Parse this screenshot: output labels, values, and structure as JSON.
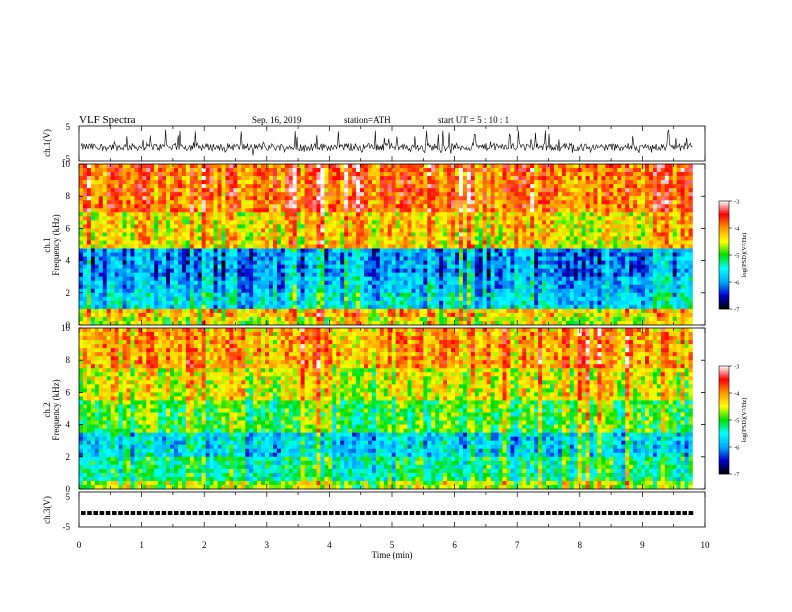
{
  "header": {
    "title": "VLF  Spectra",
    "date": "Sep. 16, 2019",
    "station": "station=ATH",
    "start": "start  UT  =   5  : 10 : 1"
  },
  "chart_data": [
    {
      "type": "line",
      "title": "",
      "ylabel": "ch.1(V)",
      "ylim": [
        -5,
        5
      ],
      "yticks": [
        "5",
        "-5"
      ],
      "xlim": [
        0,
        10
      ],
      "note_series": "continuous noisy waveform centred near -1 V, mostly between -2.5 and 0 V with frequent spikes up to about +4 V"
    },
    {
      "type": "heatmap",
      "ylabel": "ch.1\nFrequency (kHz)",
      "ylim": [
        0,
        10
      ],
      "yticks": [
        "0",
        "2",
        "4",
        "6",
        "8",
        "10"
      ],
      "xlim": [
        0,
        9.8
      ],
      "bands_khz": [
        {
          "from": 0,
          "to": 0.5,
          "level": -4.6
        },
        {
          "from": 0.5,
          "to": 1.0,
          "level": -4.3
        },
        {
          "from": 1.0,
          "to": 2.0,
          "level": -5.7
        },
        {
          "from": 2.0,
          "to": 3.0,
          "level": -5.9
        },
        {
          "from": 3.0,
          "to": 4.8,
          "level": -6.1
        },
        {
          "from": 4.8,
          "to": 7.0,
          "level": -4.4
        },
        {
          "from": 7.0,
          "to": 10.0,
          "level": -3.9
        }
      ]
    },
    {
      "type": "heatmap",
      "ylabel": "ch.2\nFrequency (kHz)",
      "ylim": [
        0,
        10
      ],
      "yticks": [
        "0",
        "2",
        "4",
        "6",
        "8",
        "10"
      ],
      "xlim": [
        0,
        9.8
      ],
      "bands_khz": [
        {
          "from": 0,
          "to": 0.6,
          "level": -4.7
        },
        {
          "from": 0.6,
          "to": 2.1,
          "level": -5.3
        },
        {
          "from": 2.1,
          "to": 3.5,
          "level": -5.7
        },
        {
          "from": 3.5,
          "to": 5.5,
          "level": -5.0
        },
        {
          "from": 5.5,
          "to": 7.5,
          "level": -4.5
        },
        {
          "from": 7.5,
          "to": 10.0,
          "level": -4.1
        }
      ]
    },
    {
      "type": "line",
      "ylabel": "ch.3(V)",
      "ylim": [
        -5,
        5
      ],
      "yticks": [
        "5",
        "-5"
      ],
      "xlim": [
        0,
        10
      ],
      "note_series": "flat square-pulse train at about -1 V"
    }
  ],
  "xaxis": {
    "label": "Time  (min)",
    "ticks": [
      "0",
      "1",
      "2",
      "3",
      "4",
      "5",
      "6",
      "7",
      "8",
      "9",
      "10"
    ],
    "range": [
      0,
      10
    ]
  },
  "colorbar": {
    "label": "log(PSD)(V²/Hz)",
    "ticks": [
      "-3",
      "-4",
      "-5",
      "-6",
      "-7"
    ],
    "range": [
      -7,
      -3
    ],
    "colormap": [
      "#000000",
      "#0000cc",
      "#00aaff",
      "#00ffff",
      "#00dd00",
      "#ffff00",
      "#ff9900",
      "#ff0000",
      "#ffffff"
    ]
  }
}
